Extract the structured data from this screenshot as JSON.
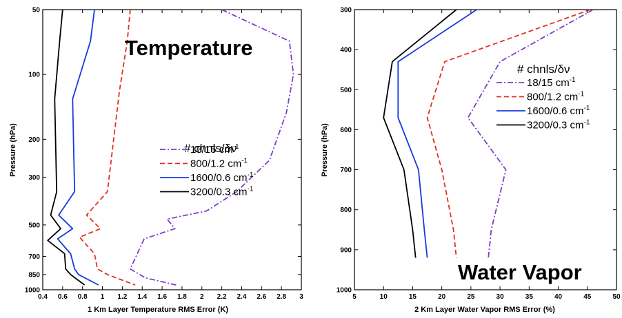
{
  "chart_data": [
    {
      "type": "line",
      "title": "Temperature",
      "xlabel": "1 Km Layer Temperature RMS Error (K)",
      "ylabel": "Pressure (hPa)",
      "xlim": [
        0.4,
        3.0
      ],
      "xticks": [
        "0.4",
        "0.6",
        "0.8",
        "1",
        "1.2",
        "1.4",
        "1.6",
        "1.8",
        "2",
        "2.2",
        "2.4",
        "2.6",
        "2.8",
        "3"
      ],
      "ylim": [
        50,
        1000
      ],
      "yscale": "log",
      "yinverted": true,
      "yticks": [
        "50",
        "100",
        "200",
        "300",
        "500",
        "700",
        "850",
        "1000"
      ],
      "legend": {
        "title": "# chnls/δν",
        "position": "lower-right",
        "entries": [
          "18/15 cm-1",
          "800/1.2 cm-1",
          "1600/0.6 cm-1",
          "3200/0.3 cm-1"
        ]
      },
      "series": [
        {
          "name": "18/15 cm-1",
          "color": "#7b3fc8",
          "dash": "dashdot",
          "x": [
            2.2,
            2.88,
            2.92,
            2.85,
            2.68,
            2.35,
            2.05,
            1.65,
            1.73,
            1.42,
            1.28,
            1.43,
            1.74
          ],
          "y": [
            50,
            70,
            100,
            150,
            250,
            350,
            430,
            470,
            520,
            580,
            800,
            880,
            950
          ]
        },
        {
          "name": "800/1.2 cm-1",
          "color": "#e03020",
          "dash": "dashed",
          "x": [
            1.28,
            1.25,
            1.17,
            1.05,
            0.84,
            0.98,
            0.77,
            0.92,
            0.95,
            1.05,
            1.33
          ],
          "y": [
            50,
            70,
            120,
            350,
            450,
            520,
            570,
            680,
            800,
            850,
            950
          ]
        },
        {
          "name": "1600/0.6 cm-1",
          "color": "#1838e0",
          "dash": "solid",
          "x": [
            0.92,
            0.88,
            0.7,
            0.72,
            0.56,
            0.7,
            0.55,
            0.68,
            0.72,
            0.76,
            0.96
          ],
          "y": [
            50,
            70,
            130,
            350,
            450,
            520,
            580,
            680,
            800,
            850,
            950
          ]
        },
        {
          "name": "3200/0.3 cm-1",
          "color": "#000000",
          "dash": "solid",
          "x": [
            0.6,
            0.57,
            0.52,
            0.54,
            0.48,
            0.58,
            0.45,
            0.62,
            0.63,
            0.68,
            0.82
          ],
          "y": [
            50,
            70,
            130,
            350,
            450,
            520,
            590,
            680,
            800,
            850,
            950
          ]
        }
      ]
    },
    {
      "type": "line",
      "title": "Water Vapor",
      "xlabel": "2 Km Layer Water Vapor RMS Error (%)",
      "ylabel": "Pressure (hPa)",
      "xlim": [
        5,
        50
      ],
      "xticks": [
        "5",
        "10",
        "15",
        "20",
        "25",
        "30",
        "35",
        "40",
        "45",
        "50"
      ],
      "ylim": [
        300,
        1000
      ],
      "yscale": "linear",
      "yinverted": true,
      "yticks": [
        "300",
        "400",
        "500",
        "600",
        "700",
        "800",
        "900",
        "1000"
      ],
      "legend": {
        "title": "# chnls/δν",
        "position": "upper-right",
        "entries": [
          "18/15 cm-1",
          "800/1.2 cm-1",
          "1600/0.6 cm-1",
          "3200/0.3 cm-1"
        ]
      },
      "series": [
        {
          "name": "18/15 cm-1",
          "color": "#7b3fc8",
          "dash": "dashdot",
          "x": [
            46,
            30,
            24.5,
            31,
            28.5,
            28
          ],
          "y": [
            300,
            430,
            570,
            700,
            850,
            920
          ]
        },
        {
          "name": "800/1.2 cm-1",
          "color": "#e03020",
          "dash": "dashed",
          "x": [
            45.5,
            20.5,
            17.5,
            20,
            22,
            22.5
          ],
          "y": [
            300,
            430,
            570,
            700,
            850,
            920
          ]
        },
        {
          "name": "1600/0.6 cm-1",
          "color": "#1838e0",
          "dash": "solid",
          "x": [
            26,
            12.5,
            12.5,
            16,
            17,
            17.5
          ],
          "y": [
            300,
            430,
            570,
            700,
            850,
            920
          ]
        },
        {
          "name": "3200/0.3 cm-1",
          "color": "#000000",
          "dash": "solid",
          "x": [
            22.5,
            11.5,
            10,
            13.5,
            15,
            15.5
          ],
          "y": [
            300,
            430,
            570,
            700,
            850,
            920
          ]
        }
      ]
    }
  ]
}
